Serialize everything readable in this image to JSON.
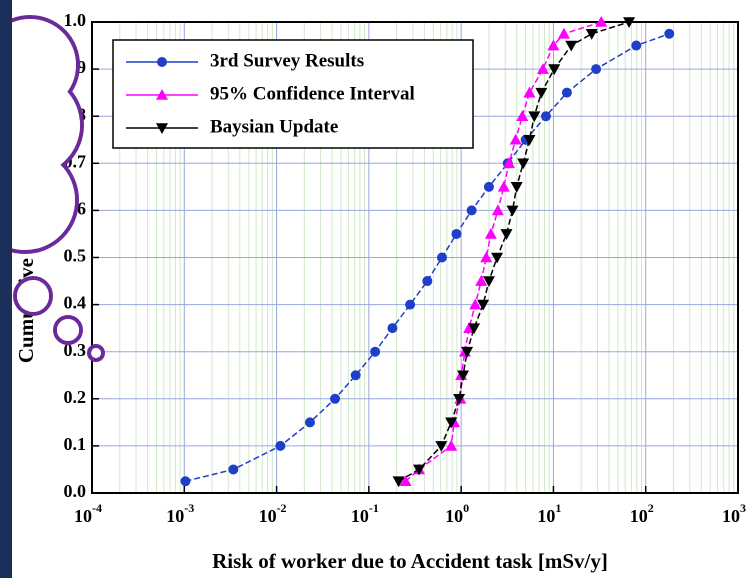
{
  "chart_data": {
    "type": "line",
    "xlabel": "Risk of worker due to Accident task [mSv/y]",
    "ylabel": "Cumulative probability",
    "xscale": "log",
    "xlim": [
      0.0001,
      1000
    ],
    "ylim": [
      0,
      1
    ],
    "xticks": [
      {
        "value": 0.0001,
        "label": "10",
        "sup": "-4"
      },
      {
        "value": 0.001,
        "label": "10",
        "sup": "-3"
      },
      {
        "value": 0.01,
        "label": "10",
        "sup": "-2"
      },
      {
        "value": 0.1,
        "label": "10",
        "sup": "-1"
      },
      {
        "value": 1,
        "label": "10",
        "sup": "0"
      },
      {
        "value": 10,
        "label": "10",
        "sup": "1"
      },
      {
        "value": 100,
        "label": "10",
        "sup": "2"
      },
      {
        "value": 1000,
        "label": "10",
        "sup": "3"
      }
    ],
    "yticks": [
      {
        "value": 0,
        "label": "0.0"
      },
      0.1,
      0.2,
      0.3,
      0.4,
      0.5,
      0.6,
      0.7,
      0.8,
      0.9,
      {
        "value": 1,
        "label": "1.0"
      }
    ],
    "grid": true,
    "legend": "upper left",
    "series": [
      {
        "name": "3rd Survey Results",
        "color": "#1f3fc8",
        "marker": "circle",
        "x": [
          0.00103,
          0.0034,
          0.011,
          0.023,
          0.043,
          0.072,
          0.117,
          0.18,
          0.28,
          0.43,
          0.62,
          0.89,
          1.3,
          2.0,
          3.2,
          5.0,
          8.3,
          14,
          29,
          79,
          180
        ],
        "values": [
          0.025,
          0.05,
          0.1,
          0.15,
          0.2,
          0.25,
          0.3,
          0.35,
          0.4,
          0.45,
          0.5,
          0.55,
          0.6,
          0.65,
          0.7,
          0.75,
          0.8,
          0.85,
          0.9,
          0.95,
          0.975
        ]
      },
      {
        "name": "95% Confidence Interval",
        "color": "#ff00ff",
        "marker": "triangle-up",
        "x": [
          0.25,
          0.35,
          0.78,
          0.84,
          0.98,
          1.0,
          1.1,
          1.22,
          1.42,
          1.65,
          1.87,
          2.1,
          2.5,
          2.9,
          3.3,
          3.9,
          4.6,
          5.5,
          7.7,
          10,
          13,
          33
        ],
        "values": [
          0.025,
          0.05,
          0.1,
          0.15,
          0.2,
          0.25,
          0.3,
          0.35,
          0.4,
          0.45,
          0.5,
          0.55,
          0.6,
          0.65,
          0.7,
          0.75,
          0.8,
          0.85,
          0.9,
          0.95,
          0.975,
          1.0
        ]
      },
      {
        "name": "Baysian Update",
        "color": "#000000",
        "marker": "triangle-down",
        "x": [
          0.21,
          0.35,
          0.61,
          0.78,
          0.95,
          1.05,
          1.16,
          1.38,
          1.73,
          2.0,
          2.45,
          3.1,
          3.6,
          4.0,
          4.7,
          5.5,
          6.2,
          7.4,
          10.2,
          15.6,
          26,
          66
        ],
        "values": [
          0.025,
          0.05,
          0.1,
          0.15,
          0.2,
          0.25,
          0.3,
          0.35,
          0.4,
          0.45,
          0.5,
          0.55,
          0.6,
          0.65,
          0.7,
          0.75,
          0.8,
          0.85,
          0.9,
          0.95,
          0.975,
          1.0
        ]
      }
    ]
  }
}
